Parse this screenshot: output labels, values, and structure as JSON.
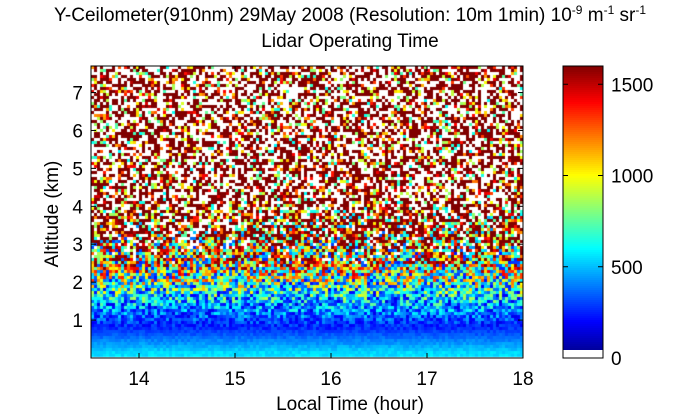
{
  "chart_data": {
    "type": "heatmap",
    "title": {
      "instrument": "Y-Ceilometer(910nm) 29May 2008 (Resolution: 10m 1min) 10",
      "exp1": "-9",
      "unit_m": " m",
      "exp2": "-1",
      "unit_sr": " sr",
      "exp3": "-1"
    },
    "subtitle": "Lidar Operating Time",
    "xlabel": "Local Time (hour)",
    "ylabel": "Altitude (km)",
    "xlim": [
      13.5,
      18.0
    ],
    "ylim": [
      0,
      7.7
    ],
    "xticks": [
      "14",
      "15",
      "16",
      "17",
      "18"
    ],
    "yticks": [
      "1",
      "2",
      "3",
      "4",
      "5",
      "6",
      "7"
    ],
    "colorbar": {
      "range": [
        0,
        1600
      ],
      "ticks": [
        "0",
        "500",
        "1000",
        "1500"
      ],
      "colormap": "jet",
      "low_color": "#ffffff"
    },
    "backscatter_profile": [
      {
        "altitude_km": 0.1,
        "typical_value": 550
      },
      {
        "altitude_km": 0.4,
        "typical_value": 420
      },
      {
        "altitude_km": 0.8,
        "typical_value": 250
      },
      {
        "altitude_km": 1.5,
        "typical_value": 500
      },
      {
        "altitude_km": 2.5,
        "typical_value": 1000
      },
      {
        "altitude_km": 4.0,
        "typical_value": 1450
      },
      {
        "altitude_km": 7.5,
        "typical_value": 1500
      }
    ],
    "grid": false
  }
}
